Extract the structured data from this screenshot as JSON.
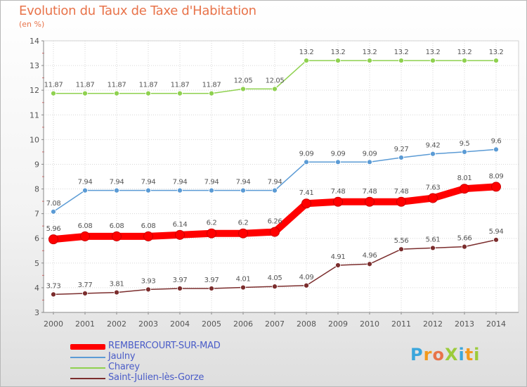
{
  "header": {
    "title": "Evolution du Taux de Taxe d'Habitation",
    "unit": "(en %)"
  },
  "brand": {
    "text": "ProXiti",
    "colors": [
      "#3aa6dc",
      "#f39a1d",
      "#e8734a",
      "#9ccb3b",
      "#3aa6dc",
      "#f39a1d",
      "#9ccb3b"
    ]
  },
  "chart_data": {
    "type": "line",
    "title": "Evolution du Taux de Taxe d'Habitation",
    "ylabel": "(en %)",
    "xlabel": "",
    "x": [
      "2000",
      "2001",
      "2002",
      "2003",
      "2004",
      "2005",
      "2006",
      "2007",
      "2008",
      "2009",
      "2010",
      "2011",
      "2012",
      "2013",
      "2014"
    ],
    "ylim": [
      3,
      14
    ],
    "yticks": [
      "3",
      "4",
      "5",
      "6",
      "7",
      "8",
      "9",
      "10",
      "11",
      "12",
      "13",
      "14"
    ],
    "grid": true,
    "legend_position": "bottom-left",
    "series": [
      {
        "name": "REMBERCOURT-SUR-MAD",
        "color": "#ff0000",
        "emphasis": true,
        "values": [
          5.96,
          6.08,
          6.08,
          6.08,
          6.14,
          6.2,
          6.2,
          6.26,
          7.41,
          7.48,
          7.48,
          7.48,
          7.63,
          8.01,
          8.09
        ],
        "labels": [
          "5.96",
          "6.08",
          "6.08",
          "6.08",
          "6.14",
          "6.2",
          "6.2",
          "6.26",
          "7.41",
          "7.48",
          "7.48",
          "7.48",
          "7.63",
          "8.01",
          "8.09"
        ]
      },
      {
        "name": "Jaulny",
        "color": "#5b9bd5",
        "values": [
          7.08,
          7.94,
          7.94,
          7.94,
          7.94,
          7.94,
          7.94,
          7.94,
          9.09,
          9.09,
          9.09,
          9.27,
          9.42,
          9.5,
          9.6
        ],
        "labels": [
          "7.08",
          "7.94",
          "7.94",
          "7.94",
          "7.94",
          "7.94",
          "7.94",
          "7.94",
          "9.09",
          "9.09",
          "9.09",
          "9.27",
          "9.42",
          "9.5",
          "9.6"
        ]
      },
      {
        "name": "Charey",
        "color": "#8fd14f",
        "values": [
          11.87,
          11.87,
          11.87,
          11.87,
          11.87,
          11.87,
          12.05,
          12.05,
          13.2,
          13.2,
          13.2,
          13.2,
          13.2,
          13.2,
          13.2
        ],
        "labels": [
          "11.87",
          "11.87",
          "11.87",
          "11.87",
          "11.87",
          "11.87",
          "12.05",
          "12.05",
          "13.2",
          "13.2",
          "13.2",
          "13.2",
          "13.2",
          "13.2",
          "13.2"
        ]
      },
      {
        "name": "Saint-Julien-lès-Gorze",
        "color": "#7b2d2d",
        "values": [
          3.73,
          3.77,
          3.81,
          3.93,
          3.97,
          3.97,
          4.01,
          4.05,
          4.09,
          4.91,
          4.96,
          5.56,
          5.61,
          5.66,
          5.94
        ],
        "labels": [
          "3.73",
          "3.77",
          "3.81",
          "3.93",
          "3.97",
          "3.97",
          "4.01",
          "4.05",
          "4.09",
          "4.91",
          "4.96",
          "5.56",
          "5.61",
          "5.66",
          "5.94"
        ]
      }
    ]
  }
}
